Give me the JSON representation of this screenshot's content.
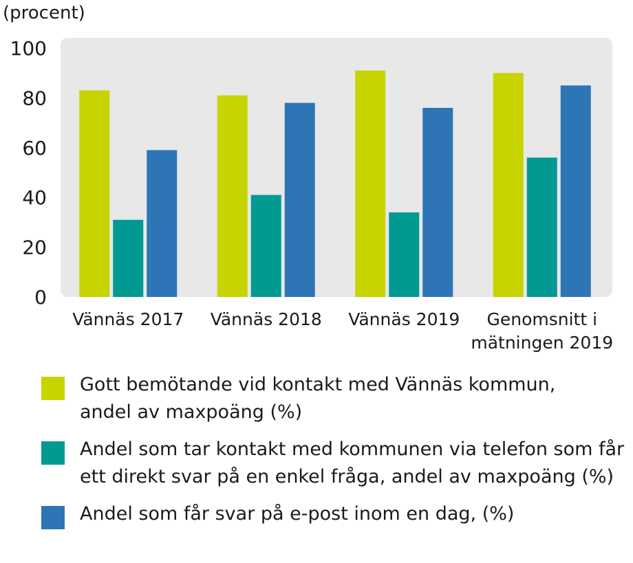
{
  "chart_data": {
    "type": "bar",
    "ylabel": "(procent)",
    "ylim": [
      0,
      100
    ],
    "yticks": [
      0,
      20,
      40,
      60,
      80,
      100
    ],
    "grid": false,
    "categories": [
      "Vännäs 2017",
      "Vännäs 2018",
      "Vännäs 2019",
      "Genomsnitt i\nmätningen 2019"
    ],
    "series": [
      {
        "name": "Gott bemötande vid kontakt med Vännäs kommun,\nandel av maxpoäng (%)",
        "color": "#c8d400",
        "values": [
          83,
          81,
          91,
          90
        ]
      },
      {
        "name": "Andel som tar kontakt med kommunen via telefon som får\nett direkt svar på en enkel fråga, andel av maxpoäng (%)",
        "color": "#009a93",
        "values": [
          31,
          41,
          34,
          56
        ]
      },
      {
        "name": "Andel som får svar på e-post inom en dag, (%)",
        "color": "#2e75b6",
        "values": [
          59,
          78,
          76,
          85
        ]
      }
    ],
    "legend_position": "bottom",
    "plot_background": "#e8e8e8"
  }
}
